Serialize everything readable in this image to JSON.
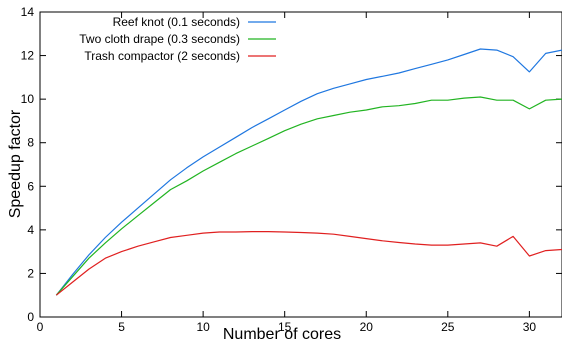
{
  "chart_data": {
    "type": "line",
    "title": "",
    "xlabel": "Number of cores",
    "ylabel": "Speedup factor",
    "xlim": [
      0,
      32
    ],
    "ylim": [
      0,
      14
    ],
    "xticks": [
      0,
      5,
      10,
      15,
      20,
      25,
      30
    ],
    "yticks": [
      0,
      2,
      4,
      6,
      8,
      10,
      12,
      14
    ],
    "grid": false,
    "legend_position": "top-left",
    "x": [
      1,
      2,
      3,
      4,
      5,
      6,
      7,
      8,
      9,
      10,
      11,
      12,
      13,
      14,
      15,
      16,
      17,
      18,
      19,
      20,
      21,
      22,
      23,
      24,
      25,
      26,
      27,
      28,
      29,
      30,
      31,
      32
    ],
    "series": [
      {
        "name": "Reef knot (0.1 seconds)",
        "color": "#1f77e0",
        "values": [
          1.0,
          1.95,
          2.85,
          3.65,
          4.35,
          5.0,
          5.65,
          6.3,
          6.85,
          7.35,
          7.8,
          8.25,
          8.7,
          9.1,
          9.5,
          9.9,
          10.25,
          10.5,
          10.7,
          10.9,
          11.05,
          11.2,
          11.4,
          11.6,
          11.8,
          12.05,
          12.3,
          12.25,
          11.95,
          11.25,
          12.1,
          12.25
        ]
      },
      {
        "name": "Two cloth drape (0.3 seconds)",
        "color": "#22b422",
        "values": [
          1.0,
          1.85,
          2.7,
          3.4,
          4.05,
          4.65,
          5.25,
          5.85,
          6.25,
          6.7,
          7.1,
          7.5,
          7.85,
          8.2,
          8.55,
          8.85,
          9.1,
          9.25,
          9.4,
          9.5,
          9.65,
          9.7,
          9.8,
          9.95,
          9.95,
          10.05,
          10.1,
          9.95,
          9.95,
          9.55,
          9.95,
          10.0
        ]
      },
      {
        "name": "Trash compactor (2 seconds)",
        "color": "#e02020",
        "values": [
          1.0,
          1.6,
          2.2,
          2.7,
          3.0,
          3.25,
          3.45,
          3.65,
          3.75,
          3.85,
          3.9,
          3.9,
          3.92,
          3.92,
          3.9,
          3.88,
          3.85,
          3.8,
          3.7,
          3.6,
          3.5,
          3.42,
          3.35,
          3.3,
          3.3,
          3.35,
          3.4,
          3.25,
          3.7,
          2.8,
          3.05,
          3.1
        ]
      }
    ]
  }
}
